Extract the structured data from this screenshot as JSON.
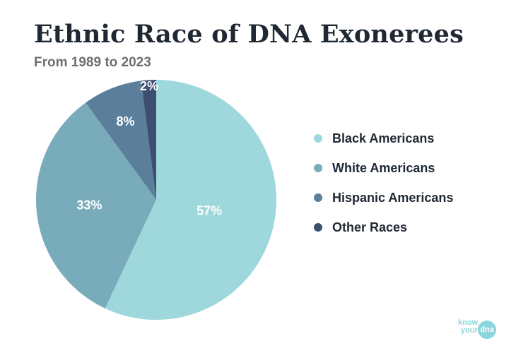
{
  "header": {
    "title": "Ethnic Race of DNA Exonerees",
    "subtitle": "From 1989 to 2023"
  },
  "chart_data": {
    "type": "pie",
    "title": "Ethnic Race of DNA Exonerees",
    "subtitle": "From 1989 to 2023",
    "categories": [
      "Black Americans",
      "White Americans",
      "Hispanic Americans",
      "Other Races"
    ],
    "values": [
      57,
      33,
      8,
      2
    ],
    "labels": [
      "57%",
      "33%",
      "8%",
      "2%"
    ],
    "colors": [
      "#9ed8dc",
      "#79acbb",
      "#5b7f9b",
      "#3d4e72"
    ],
    "legend_position": "right"
  },
  "logo": {
    "line1": "know",
    "line2": "your",
    "badge": "dna"
  }
}
